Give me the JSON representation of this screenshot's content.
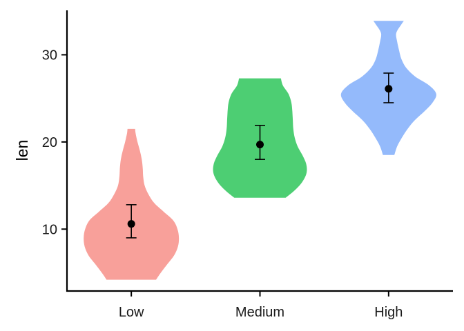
{
  "chart_data": {
    "type": "violin",
    "title": "",
    "xlabel": "",
    "ylabel": "len",
    "ylim": [
      2.9,
      35.1
    ],
    "yticks": [
      10,
      20,
      30
    ],
    "grid": false,
    "legend": "none",
    "categories": [
      "Low",
      "Medium",
      "High"
    ],
    "colors": [
      "#F8A09A",
      "#4DCE73",
      "#94BAFB"
    ],
    "groups": [
      {
        "name": "Low",
        "min": 4.2,
        "max": 21.5,
        "mean": 10.6,
        "error_low": 9.0,
        "error_high": 12.8,
        "density": [
          [
            4.2,
            0.52
          ],
          [
            5.0,
            0.62
          ],
          [
            6.0,
            0.76
          ],
          [
            7.0,
            0.9
          ],
          [
            8.0,
            0.98
          ],
          [
            9.0,
            1.0
          ],
          [
            10.0,
            0.97
          ],
          [
            11.0,
            0.88
          ],
          [
            12.0,
            0.68
          ],
          [
            13.0,
            0.48
          ],
          [
            14.0,
            0.36
          ],
          [
            15.0,
            0.28
          ],
          [
            16.0,
            0.25
          ],
          [
            17.0,
            0.24
          ],
          [
            18.0,
            0.22
          ],
          [
            19.0,
            0.18
          ],
          [
            20.0,
            0.13
          ],
          [
            21.0,
            0.09
          ],
          [
            21.5,
            0.08
          ]
        ]
      },
      {
        "name": "Medium",
        "min": 13.6,
        "max": 27.3,
        "mean": 19.7,
        "error_low": 18.0,
        "error_high": 21.9,
        "density": [
          [
            13.6,
            0.54
          ],
          [
            14.5,
            0.74
          ],
          [
            15.5,
            0.9
          ],
          [
            16.5,
            0.98
          ],
          [
            17.5,
            0.97
          ],
          [
            18.5,
            0.89
          ],
          [
            19.5,
            0.79
          ],
          [
            20.5,
            0.73
          ],
          [
            21.5,
            0.7
          ],
          [
            22.5,
            0.69
          ],
          [
            23.5,
            0.68
          ],
          [
            24.5,
            0.66
          ],
          [
            25.5,
            0.6
          ],
          [
            26.5,
            0.48
          ],
          [
            27.3,
            0.44
          ]
        ]
      },
      {
        "name": "High",
        "min": 18.5,
        "max": 33.9,
        "mean": 26.1,
        "error_low": 24.5,
        "error_high": 27.9,
        "density": [
          [
            18.5,
            0.12
          ],
          [
            19.5,
            0.18
          ],
          [
            20.5,
            0.28
          ],
          [
            21.5,
            0.4
          ],
          [
            22.5,
            0.55
          ],
          [
            23.5,
            0.75
          ],
          [
            24.5,
            0.92
          ],
          [
            25.5,
            1.0
          ],
          [
            26.5,
            0.85
          ],
          [
            27.5,
            0.56
          ],
          [
            28.5,
            0.37
          ],
          [
            29.5,
            0.27
          ],
          [
            30.5,
            0.22
          ],
          [
            31.5,
            0.18
          ],
          [
            32.5,
            0.16
          ],
          [
            33.5,
            0.27
          ],
          [
            33.9,
            0.32
          ]
        ]
      }
    ]
  }
}
